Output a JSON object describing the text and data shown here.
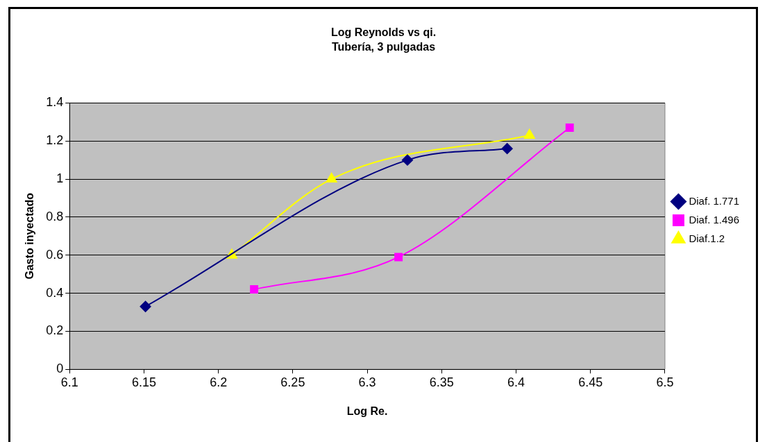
{
  "chart_data": {
    "type": "line",
    "title": "Log Reynolds vs qi.",
    "subtitle": "Tubería, 3 pulgadas",
    "xlabel": "Log Re.",
    "ylabel": "Gasto inyectado",
    "series": [
      {
        "name": "Diaf. 1.771",
        "color": "#000080",
        "marker": "diamond",
        "x": [
          6.151,
          6.327,
          6.394
        ],
        "values": [
          0.33,
          1.1,
          1.16
        ]
      },
      {
        "name": "Diaf. 1.496",
        "color": "#ff00ff",
        "marker": "square",
        "x": [
          6.224,
          6.321,
          6.436
        ],
        "values": [
          0.42,
          0.59,
          1.27
        ]
      },
      {
        "name": "Diaf.1.2",
        "color": "#ffff00",
        "marker": "triangle",
        "x": [
          6.209,
          6.276,
          6.409
        ],
        "values": [
          0.6,
          1.0,
          1.23
        ]
      }
    ],
    "xlim": [
      6.1,
      6.5
    ],
    "xticks": [
      6.1,
      6.15,
      6.2,
      6.25,
      6.3,
      6.35,
      6.4,
      6.45,
      6.5
    ],
    "ylim": [
      0,
      1.4
    ],
    "yticks": [
      0,
      0.2,
      0.4,
      0.6,
      0.8,
      1,
      1.2,
      1.4
    ],
    "grid": "y",
    "legend": "right"
  }
}
